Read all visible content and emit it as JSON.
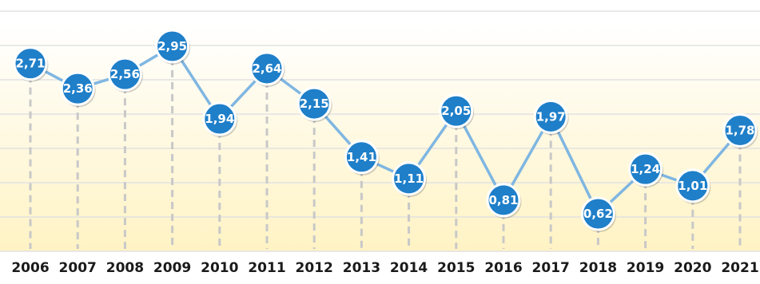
{
  "chart_data": {
    "type": "line",
    "title": "",
    "xlabel": "",
    "ylabel": "",
    "categories": [
      "2006",
      "2007",
      "2008",
      "2009",
      "2010",
      "2011",
      "2012",
      "2013",
      "2014",
      "2015",
      "2016",
      "2017",
      "2018",
      "2019",
      "2020",
      "2021"
    ],
    "series": [
      {
        "values": [
          2.71,
          2.36,
          2.56,
          2.95,
          1.94,
          2.64,
          2.15,
          1.41,
          1.11,
          2.05,
          0.81,
          1.97,
          0.62,
          1.24,
          1.01,
          1.78
        ],
        "labels": [
          "2,71",
          "2,36",
          "2,56",
          "2,95",
          "1,94",
          "2,64",
          "2,15",
          "1,41",
          "1,11",
          "2,05",
          "0,81",
          "1,97",
          "0,62",
          "1,24",
          "1,01",
          "1,78"
        ]
      }
    ],
    "ylim": [
      0,
      3.3
    ],
    "grid": true,
    "legend": "none"
  },
  "colors": {
    "line": "#7fb6e2",
    "marker_fill": "#1f7fc9",
    "marker_stroke": "#ffffff",
    "drop_line": "#c8c8c8",
    "grid": "#e2e2e2",
    "background_top": "#ffffff",
    "background_bottom": "#fff3c4",
    "year_text": "#1a1a1a"
  }
}
